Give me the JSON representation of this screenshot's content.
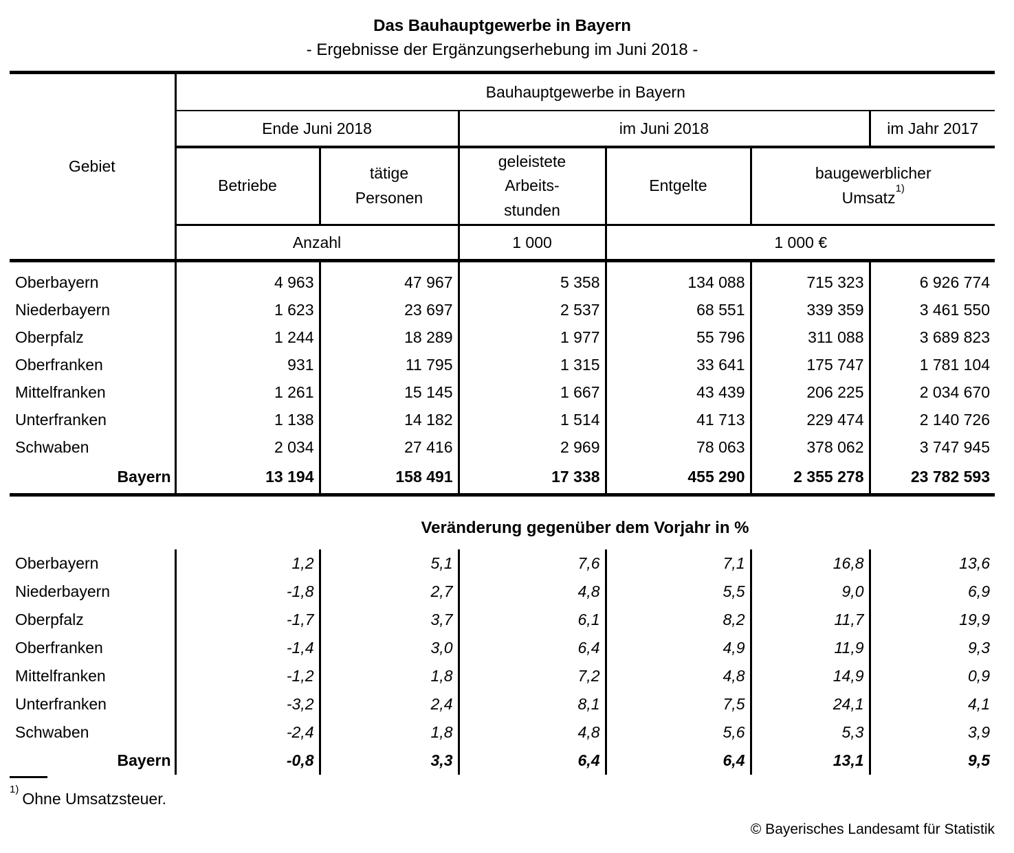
{
  "title": "Das Bauhauptgewerbe in Bayern",
  "subtitle": "- Ergebnisse der Ergänzungserhebung im Juni 2018 -",
  "colors": {
    "text": "#000000",
    "lines": "#000000",
    "background": "#ffffff"
  },
  "table": {
    "gebiet_label": "Gebiet",
    "top_header": "Bauhauptgewerbe in Bayern",
    "period_headers": [
      "Ende Juni 2018",
      "im Juni 2018",
      "im Jahr 2017"
    ],
    "column_headers": [
      "Betriebe",
      "tätige\nPersonen",
      "geleistete\nArbeits-\nstunden",
      "Entgelte",
      "baugewerblicher\nUmsatz"
    ],
    "footnote_marker": "1)",
    "unit_headers": [
      "Anzahl",
      "1 000",
      "1 000 €"
    ],
    "rows": [
      {
        "gebiet": "Oberbayern",
        "values": [
          "4 963",
          "47 967",
          "5 358",
          "134 088",
          "715 323",
          "6 926 774"
        ]
      },
      {
        "gebiet": "Niederbayern",
        "values": [
          "1 623",
          "23 697",
          "2 537",
          "68 551",
          "339 359",
          "3 461 550"
        ]
      },
      {
        "gebiet": "Oberpfalz",
        "values": [
          "1 244",
          "18 289",
          "1 977",
          "55 796",
          "311 088",
          "3 689 823"
        ]
      },
      {
        "gebiet": "Oberfranken",
        "values": [
          "931",
          "11 795",
          "1 315",
          "33 641",
          "175 747",
          "1 781 104"
        ]
      },
      {
        "gebiet": "Mittelfranken",
        "values": [
          "1 261",
          "15 145",
          "1 667",
          "43 439",
          "206 225",
          "2 034 670"
        ]
      },
      {
        "gebiet": "Unterfranken",
        "values": [
          "1 138",
          "14 182",
          "1 514",
          "41 713",
          "229 474",
          "2 140 726"
        ]
      },
      {
        "gebiet": "Schwaben",
        "values": [
          "2 034",
          "27 416",
          "2 969",
          "78 063",
          "378 062",
          "3 747 945"
        ]
      }
    ],
    "total": {
      "gebiet": "Bayern",
      "values": [
        "13 194",
        "158 491",
        "17 338",
        "455 290",
        "2 355 278",
        "23 782 593"
      ]
    }
  },
  "percent_table": {
    "title": "Veränderung gegenüber dem Vorjahr in %",
    "rows": [
      {
        "gebiet": "Oberbayern",
        "values": [
          "1,2",
          "5,1",
          "7,6",
          "7,1",
          "16,8",
          "13,6"
        ]
      },
      {
        "gebiet": "Niederbayern",
        "values": [
          "-1,8",
          "2,7",
          "4,8",
          "5,5",
          "9,0",
          "6,9"
        ]
      },
      {
        "gebiet": "Oberpfalz",
        "values": [
          "-1,7",
          "3,7",
          "6,1",
          "8,2",
          "11,7",
          "19,9"
        ]
      },
      {
        "gebiet": "Oberfranken",
        "values": [
          "-1,4",
          "3,0",
          "6,4",
          "4,9",
          "11,9",
          "9,3"
        ]
      },
      {
        "gebiet": "Mittelfranken",
        "values": [
          "-1,2",
          "1,8",
          "7,2",
          "4,8",
          "14,9",
          "0,9"
        ]
      },
      {
        "gebiet": "Unterfranken",
        "values": [
          "-3,2",
          "2,4",
          "8,1",
          "7,5",
          "24,1",
          "4,1"
        ]
      },
      {
        "gebiet": "Schwaben",
        "values": [
          "-2,4",
          "1,8",
          "4,8",
          "5,6",
          "5,3",
          "3,9"
        ]
      }
    ],
    "total": {
      "gebiet": "Bayern",
      "values": [
        "-0,8",
        "3,3",
        "6,4",
        "6,4",
        "13,1",
        "9,5"
      ]
    }
  },
  "footnote": {
    "marker": "1)",
    "text": "Ohne Umsatzsteuer."
  },
  "copyright": "© Bayerisches Landesamt für Statistik"
}
